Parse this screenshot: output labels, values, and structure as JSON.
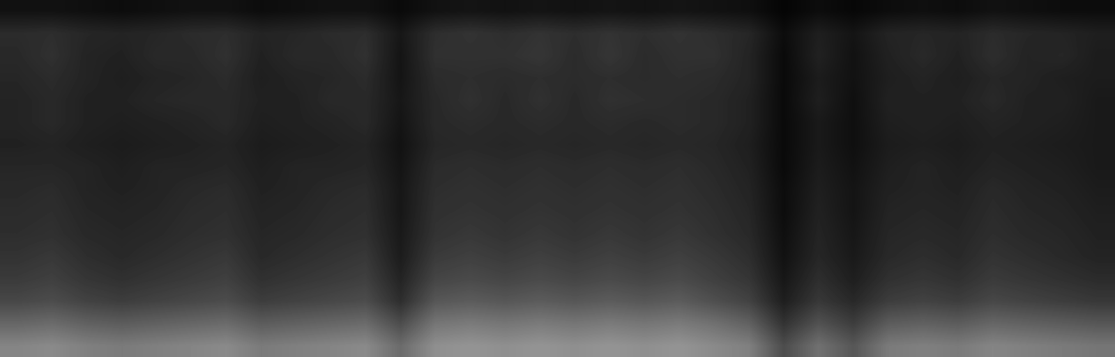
{
  "chart_data": {
    "type": "heatmap",
    "tick_labels": false,
    "color": "gray",
    "zlim": [
      0,
      1
    ],
    "cells": [
      [
        0.07,
        0.07,
        0.06,
        0.05,
        0.06,
        0.07,
        0.07,
        0.05,
        0.06,
        0.07,
        0.07,
        0.04,
        0.07,
        0.08,
        0.07,
        0.08,
        0.07,
        0.08,
        0.07,
        0.08,
        0.07,
        0.06,
        0.02,
        0.05,
        0.03,
        0.05,
        0.06,
        0.05,
        0.07,
        0.06,
        0.05,
        0.05
      ],
      [
        0.17,
        0.18,
        0.15,
        0.14,
        0.15,
        0.17,
        0.18,
        0.14,
        0.15,
        0.17,
        0.18,
        0.09,
        0.18,
        0.2,
        0.18,
        0.2,
        0.18,
        0.2,
        0.18,
        0.2,
        0.18,
        0.15,
        0.05,
        0.12,
        0.08,
        0.14,
        0.15,
        0.14,
        0.17,
        0.15,
        0.14,
        0.12
      ],
      [
        0.16,
        0.19,
        0.14,
        0.13,
        0.16,
        0.16,
        0.19,
        0.13,
        0.16,
        0.16,
        0.19,
        0.08,
        0.19,
        0.19,
        0.19,
        0.21,
        0.17,
        0.21,
        0.17,
        0.19,
        0.19,
        0.14,
        0.04,
        0.13,
        0.07,
        0.13,
        0.16,
        0.13,
        0.18,
        0.14,
        0.15,
        0.11
      ],
      [
        0.15,
        0.17,
        0.14,
        0.12,
        0.14,
        0.15,
        0.17,
        0.12,
        0.14,
        0.15,
        0.17,
        0.08,
        0.17,
        0.18,
        0.17,
        0.18,
        0.17,
        0.18,
        0.17,
        0.18,
        0.17,
        0.14,
        0.04,
        0.11,
        0.07,
        0.12,
        0.14,
        0.12,
        0.15,
        0.14,
        0.12,
        0.11
      ],
      [
        0.14,
        0.16,
        0.13,
        0.13,
        0.15,
        0.16,
        0.16,
        0.13,
        0.13,
        0.16,
        0.16,
        0.09,
        0.16,
        0.19,
        0.16,
        0.19,
        0.16,
        0.19,
        0.18,
        0.17,
        0.16,
        0.13,
        0.04,
        0.12,
        0.06,
        0.13,
        0.13,
        0.13,
        0.16,
        0.13,
        0.13,
        0.1
      ],
      [
        0.14,
        0.16,
        0.13,
        0.12,
        0.13,
        0.14,
        0.16,
        0.12,
        0.13,
        0.14,
        0.16,
        0.08,
        0.16,
        0.17,
        0.16,
        0.17,
        0.16,
        0.17,
        0.16,
        0.17,
        0.16,
        0.13,
        0.04,
        0.1,
        0.06,
        0.12,
        0.13,
        0.12,
        0.14,
        0.13,
        0.12,
        0.1
      ],
      [
        0.13,
        0.14,
        0.12,
        0.11,
        0.12,
        0.13,
        0.14,
        0.11,
        0.12,
        0.13,
        0.14,
        0.07,
        0.15,
        0.16,
        0.15,
        0.16,
        0.15,
        0.16,
        0.15,
        0.16,
        0.15,
        0.12,
        0.04,
        0.1,
        0.06,
        0.11,
        0.12,
        0.11,
        0.13,
        0.12,
        0.11,
        0.1
      ],
      [
        0.15,
        0.15,
        0.14,
        0.12,
        0.14,
        0.14,
        0.15,
        0.12,
        0.14,
        0.14,
        0.15,
        0.08,
        0.17,
        0.18,
        0.17,
        0.18,
        0.17,
        0.18,
        0.17,
        0.18,
        0.16,
        0.13,
        0.04,
        0.11,
        0.07,
        0.12,
        0.14,
        0.12,
        0.14,
        0.13,
        0.12,
        0.1
      ],
      [
        0.16,
        0.17,
        0.14,
        0.13,
        0.14,
        0.16,
        0.17,
        0.13,
        0.14,
        0.16,
        0.17,
        0.09,
        0.18,
        0.19,
        0.18,
        0.19,
        0.18,
        0.19,
        0.18,
        0.19,
        0.17,
        0.14,
        0.05,
        0.12,
        0.08,
        0.13,
        0.14,
        0.13,
        0.16,
        0.14,
        0.13,
        0.11
      ],
      [
        0.17,
        0.18,
        0.15,
        0.14,
        0.15,
        0.17,
        0.18,
        0.14,
        0.15,
        0.17,
        0.18,
        0.09,
        0.19,
        0.2,
        0.19,
        0.2,
        0.19,
        0.2,
        0.19,
        0.2,
        0.18,
        0.15,
        0.05,
        0.13,
        0.08,
        0.14,
        0.15,
        0.14,
        0.17,
        0.15,
        0.14,
        0.12
      ],
      [
        0.18,
        0.19,
        0.16,
        0.15,
        0.16,
        0.18,
        0.19,
        0.15,
        0.16,
        0.18,
        0.19,
        0.1,
        0.2,
        0.22,
        0.2,
        0.22,
        0.2,
        0.22,
        0.2,
        0.22,
        0.19,
        0.16,
        0.06,
        0.14,
        0.09,
        0.15,
        0.16,
        0.15,
        0.18,
        0.16,
        0.15,
        0.13
      ],
      [
        0.2,
        0.22,
        0.18,
        0.16,
        0.18,
        0.2,
        0.22,
        0.16,
        0.18,
        0.2,
        0.22,
        0.11,
        0.23,
        0.25,
        0.23,
        0.25,
        0.23,
        0.25,
        0.23,
        0.25,
        0.22,
        0.18,
        0.07,
        0.15,
        0.1,
        0.16,
        0.18,
        0.16,
        0.2,
        0.18,
        0.16,
        0.14
      ],
      [
        0.23,
        0.25,
        0.21,
        0.19,
        0.21,
        0.23,
        0.25,
        0.19,
        0.21,
        0.23,
        0.25,
        0.14,
        0.27,
        0.29,
        0.27,
        0.29,
        0.27,
        0.29,
        0.27,
        0.29,
        0.25,
        0.21,
        0.09,
        0.18,
        0.12,
        0.19,
        0.21,
        0.19,
        0.23,
        0.21,
        0.19,
        0.17
      ],
      [
        0.28,
        0.3,
        0.26,
        0.24,
        0.26,
        0.28,
        0.3,
        0.24,
        0.26,
        0.28,
        0.3,
        0.18,
        0.34,
        0.36,
        0.34,
        0.36,
        0.34,
        0.36,
        0.34,
        0.36,
        0.31,
        0.26,
        0.12,
        0.22,
        0.16,
        0.24,
        0.26,
        0.24,
        0.28,
        0.26,
        0.24,
        0.22
      ],
      [
        0.4,
        0.42,
        0.38,
        0.36,
        0.38,
        0.4,
        0.42,
        0.36,
        0.38,
        0.4,
        0.42,
        0.3,
        0.46,
        0.48,
        0.46,
        0.48,
        0.46,
        0.48,
        0.46,
        0.48,
        0.44,
        0.38,
        0.2,
        0.32,
        0.24,
        0.36,
        0.38,
        0.36,
        0.4,
        0.38,
        0.36,
        0.34
      ],
      [
        0.52,
        0.54,
        0.5,
        0.48,
        0.5,
        0.52,
        0.54,
        0.48,
        0.5,
        0.52,
        0.54,
        0.42,
        0.56,
        0.58,
        0.56,
        0.58,
        0.56,
        0.58,
        0.56,
        0.58,
        0.54,
        0.5,
        0.3,
        0.44,
        0.34,
        0.48,
        0.5,
        0.48,
        0.52,
        0.5,
        0.48,
        0.46
      ]
    ]
  }
}
